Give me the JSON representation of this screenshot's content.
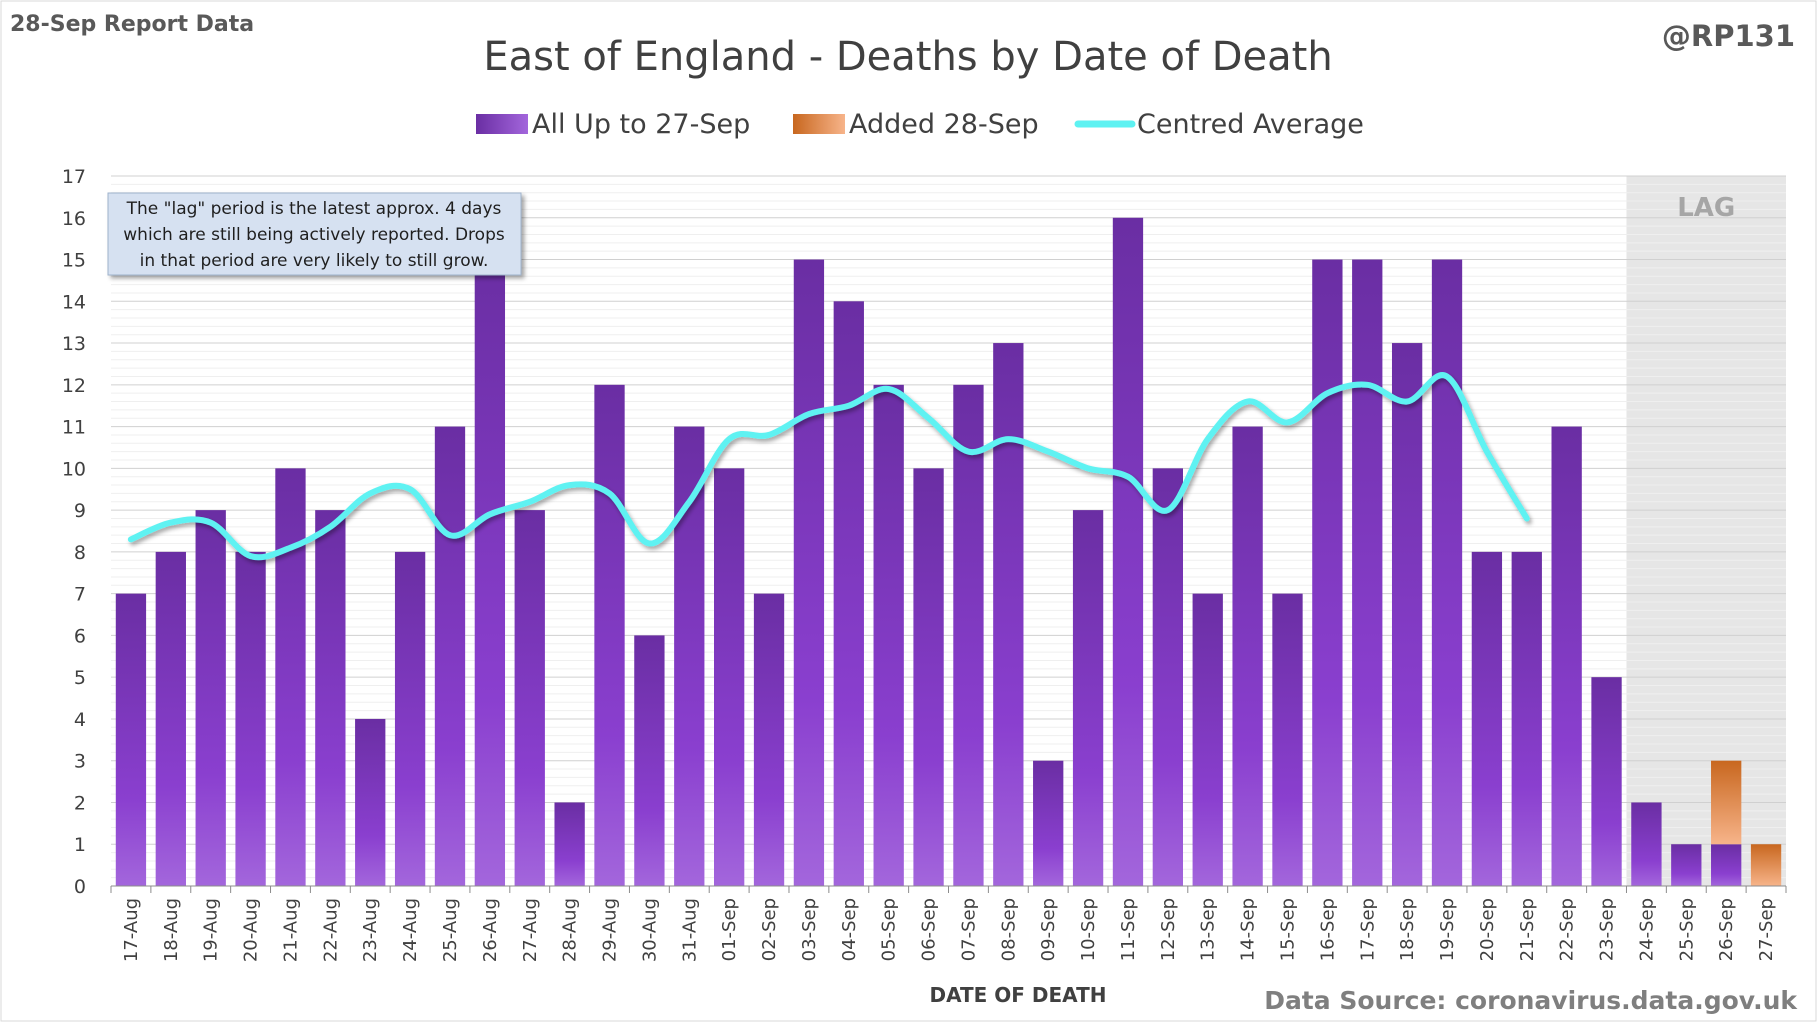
{
  "report_label": "28-Sep Report Data",
  "handle": "@RP131",
  "source": "Data Source: coronavirus.data.gov.uk",
  "note_lines": [
    "The \"lag\" period is the latest approx. 4 days",
    "which are still being actively reported.  Drops",
    "in that period are very likely to still grow."
  ],
  "lag_label": "LAG",
  "colors": {
    "base": "#7030a0",
    "added": "#e07a30",
    "average": "#5ef2f2",
    "lag_shade": "#e6e6e6"
  },
  "chart_data": {
    "type": "bar",
    "title": "East of England - Deaths by Date of Death",
    "xlabel": "DATE OF DEATH",
    "ylabel": "",
    "ylim": [
      0,
      17
    ],
    "yticks": [
      0,
      1,
      2,
      3,
      4,
      5,
      6,
      7,
      8,
      9,
      10,
      11,
      12,
      13,
      14,
      15,
      16,
      17
    ],
    "legend_position": "top",
    "grid": true,
    "stacked": true,
    "categories": [
      "17-Aug",
      "18-Aug",
      "19-Aug",
      "20-Aug",
      "21-Aug",
      "22-Aug",
      "23-Aug",
      "24-Aug",
      "25-Aug",
      "26-Aug",
      "27-Aug",
      "28-Aug",
      "29-Aug",
      "30-Aug",
      "31-Aug",
      "01-Sep",
      "02-Sep",
      "03-Sep",
      "04-Sep",
      "05-Sep",
      "06-Sep",
      "07-Sep",
      "08-Sep",
      "09-Sep",
      "10-Sep",
      "11-Sep",
      "12-Sep",
      "13-Sep",
      "14-Sep",
      "15-Sep",
      "16-Sep",
      "17-Sep",
      "18-Sep",
      "19-Sep",
      "20-Sep",
      "21-Sep",
      "22-Sep",
      "23-Sep",
      "24-Sep",
      "25-Sep",
      "26-Sep",
      "27-Sep"
    ],
    "lag_range": [
      "24-Sep",
      "27-Sep"
    ],
    "series": [
      {
        "name": "All Up to 27-Sep",
        "kind": "bar",
        "values": [
          7,
          8,
          9,
          8,
          10,
          9,
          4,
          8,
          11,
          15,
          9,
          2,
          12,
          6,
          11,
          10,
          7,
          15,
          14,
          12,
          10,
          12,
          13,
          3,
          9,
          16,
          10,
          7,
          11,
          7,
          15,
          15,
          13,
          15,
          8,
          8,
          11,
          5,
          2,
          1,
          1,
          0
        ]
      },
      {
        "name": "Added 28-Sep",
        "kind": "bar",
        "values": [
          0,
          0,
          0,
          0,
          0,
          0,
          0,
          0,
          0,
          0,
          0,
          0,
          0,
          0,
          0,
          0,
          0,
          0,
          0,
          0,
          0,
          0,
          0,
          0,
          0,
          0,
          0,
          0,
          0,
          0,
          0,
          0,
          0,
          0,
          0,
          0,
          0,
          0,
          0,
          0,
          2,
          1
        ]
      },
      {
        "name": "Centred Average",
        "kind": "line",
        "values": [
          8.3,
          8.7,
          8.7,
          7.9,
          8.1,
          8.6,
          9.4,
          9.5,
          8.4,
          8.9,
          9.2,
          9.6,
          9.4,
          8.2,
          9.2,
          10.7,
          10.8,
          11.3,
          11.5,
          11.9,
          11.2,
          10.4,
          10.7,
          10.4,
          10.0,
          9.8,
          9.0,
          10.7,
          11.6,
          11.1,
          11.8,
          12.0,
          11.6,
          12.2,
          10.4,
          8.8,
          null,
          null,
          null,
          null,
          null,
          null
        ]
      }
    ]
  }
}
